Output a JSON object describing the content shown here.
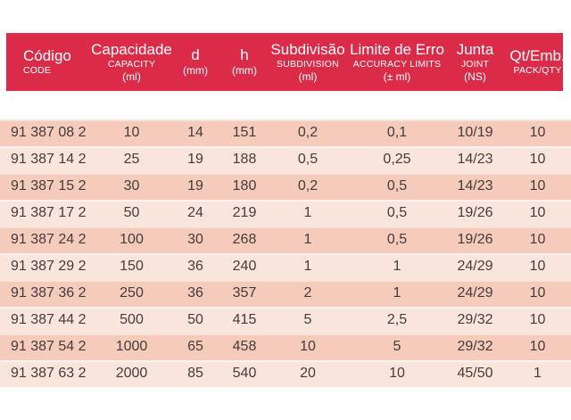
{
  "table": {
    "columns": [
      {
        "id": "codigo",
        "title": "Código",
        "subtitle": "CODE",
        "unit": ""
      },
      {
        "id": "capacidade",
        "title": "Capacidade",
        "subtitle": "CAPACITY",
        "unit": "(ml)"
      },
      {
        "id": "d",
        "title": "d",
        "subtitle": "",
        "unit": "(mm)"
      },
      {
        "id": "h",
        "title": "h",
        "subtitle": "",
        "unit": "(mm)"
      },
      {
        "id": "subdivisao",
        "title": "Subdivisão",
        "subtitle": "SUBDIVISION",
        "unit": "(ml)"
      },
      {
        "id": "limite",
        "title": "Limite de Erro",
        "subtitle": "ACCURACY LIMITS",
        "unit": "(± ml)"
      },
      {
        "id": "junta",
        "title": "Junta",
        "subtitle": "JOINT",
        "unit": "(NS)"
      },
      {
        "id": "qtemb",
        "title": "Qt/Emb.",
        "subtitle": "PACK/QTY",
        "unit": ""
      }
    ],
    "rows": [
      [
        "91 387 08 2",
        "10",
        "14",
        "151",
        "0,2",
        "0,1",
        "10/19",
        "10"
      ],
      [
        "91 387 14 2",
        "25",
        "19",
        "188",
        "0,5",
        "0,25",
        "14/23",
        "10"
      ],
      [
        "91 387 15 2",
        "30",
        "19",
        "180",
        "0,2",
        "0,5",
        "14/23",
        "10"
      ],
      [
        "91 387 17 2",
        "50",
        "24",
        "219",
        "1",
        "0,5",
        "19/26",
        "10"
      ],
      [
        "91 387 24 2",
        "100",
        "30",
        "268",
        "1",
        "0,5",
        "19/26",
        "10"
      ],
      [
        "91 387 29 2",
        "150",
        "36",
        "240",
        "1",
        "1",
        "24/29",
        "10"
      ],
      [
        "91 387 36 2",
        "250",
        "36",
        "357",
        "2",
        "1",
        "24/29",
        "10"
      ],
      [
        "91 387 44 2",
        "500",
        "50",
        "415",
        "5",
        "2,5",
        "29/32",
        "10"
      ],
      [
        "91 387 54 2",
        "1000",
        "65",
        "458",
        "10",
        "5",
        "29/32",
        "10"
      ],
      [
        "91 387 63 2",
        "2000",
        "85",
        "540",
        "20",
        "10",
        "45/50",
        "1"
      ]
    ]
  },
  "colors": {
    "header_bg": "#DA2C49",
    "header_text": "#FFFFFF",
    "row_dark": "#F5CBBC",
    "row_light": "#FAE5DD",
    "row_text": "#443B3B",
    "page_bg": "#FFFFFF"
  }
}
